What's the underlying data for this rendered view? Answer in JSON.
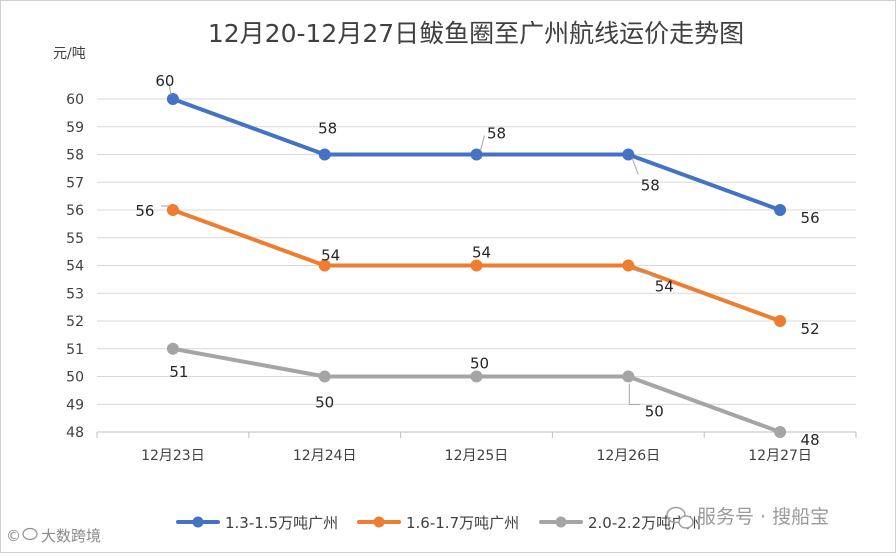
{
  "chart_data": {
    "type": "line",
    "title": "12月20-12月27日鲅鱼圈至广州航线运价走势图",
    "ylabel": "元/吨",
    "xlabel": "",
    "categories": [
      "12月23日",
      "12月24日",
      "12月25日",
      "12月26日",
      "12月27日"
    ],
    "ylim": [
      48,
      60
    ],
    "ytick_step": 1,
    "grid": true,
    "legend_position": "bottom",
    "series": [
      {
        "name": "1.3-1.5万吨广州",
        "color": "#4472c4",
        "values": [
          60,
          58,
          58,
          58,
          56
        ]
      },
      {
        "name": "1.6-1.7万吨广州",
        "color": "#ed7d31",
        "values": [
          56,
          54,
          54,
          54,
          52
        ]
      },
      {
        "name": "2.0-2.2万吨广州",
        "color": "#a5a5a5",
        "values": [
          51,
          50,
          50,
          50,
          48
        ]
      }
    ]
  },
  "watermark": {
    "service_text": "服务号 · 搜船宝",
    "brand_text": "大数跨境",
    "brand_symbol": "©"
  }
}
